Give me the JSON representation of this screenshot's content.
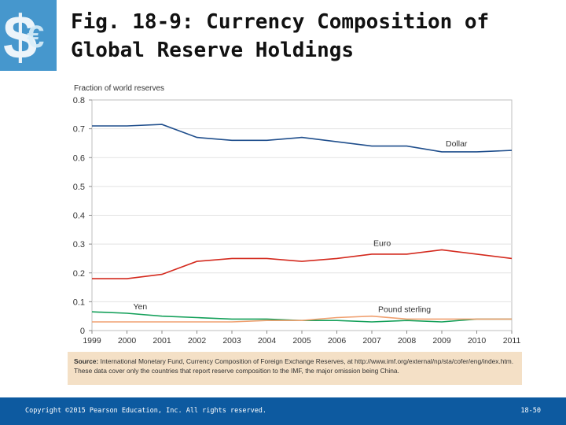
{
  "slide": {
    "title_line1": "Fig. 18-9: Currency Composition of",
    "title_line2": "Global Reserve Holdings",
    "source_label": "Source:",
    "source_text": "International Monetary Fund, Currency Composition of Foreign Exchange Reserves, at http://www.imf.org/external/np/sta/cofer/eng/index.htm. These data cover only the countries that report reserve composition to the IMF, the major omission being China.",
    "copyright": "Copyright ©2015 Pearson Education, Inc. All rights reserved.",
    "slide_number": "18-50",
    "logo_icon": "dollar-euro-icon"
  },
  "colors": {
    "dollar": "#1f4e8c",
    "euro": "#d42a1e",
    "yen": "#14a05a",
    "pound": "#f0a070",
    "grid": "#bfbfbf",
    "footer": "#0d5aa0",
    "source_bg": "#f4e0c6"
  },
  "chart_data": {
    "type": "line",
    "title": "",
    "ylabel": "Fraction of world reserves",
    "xlabel": "",
    "ylim": [
      0,
      0.8
    ],
    "yticks": [
      "0",
      "0.1",
      "0.2",
      "0.3",
      "0.4",
      "0.5",
      "0.6",
      "0.7",
      "0.8"
    ],
    "x": [
      "1999",
      "2000",
      "2001",
      "2002",
      "2003",
      "2004",
      "2005",
      "2006",
      "2007",
      "2008",
      "2009",
      "2010",
      "2011"
    ],
    "grid": true,
    "series": [
      {
        "name": "Dollar",
        "color_key": "dollar",
        "values": [
          0.71,
          0.71,
          0.715,
          0.67,
          0.66,
          0.66,
          0.67,
          0.655,
          0.64,
          0.64,
          0.62,
          0.62,
          0.625
        ]
      },
      {
        "name": "Euro",
        "color_key": "euro",
        "values": [
          0.18,
          0.18,
          0.195,
          0.24,
          0.25,
          0.25,
          0.24,
          0.25,
          0.265,
          0.265,
          0.28,
          0.265,
          0.25
        ]
      },
      {
        "name": "Yen",
        "color_key": "yen",
        "values": [
          0.065,
          0.06,
          0.05,
          0.045,
          0.04,
          0.04,
          0.035,
          0.035,
          0.03,
          0.035,
          0.03,
          0.04,
          0.04
        ]
      },
      {
        "name": "Pound sterling",
        "color_key": "pound",
        "values": [
          0.03,
          0.03,
          0.03,
          0.03,
          0.03,
          0.035,
          0.035,
          0.045,
          0.05,
          0.04,
          0.04,
          0.04,
          0.04
        ]
      }
    ],
    "annotations": [
      {
        "text": "Dollar",
        "series": "Dollar",
        "x": "2009",
        "y": 0.65
      },
      {
        "text": "Euro",
        "series": "Euro",
        "x": "2007",
        "y": 0.305
      },
      {
        "text": "Yen",
        "series": "Yen",
        "x": "2000",
        "y": 0.085
      },
      {
        "text": "Pound sterling",
        "series": "Pound sterling",
        "x": "2007",
        "y": 0.075
      }
    ]
  }
}
